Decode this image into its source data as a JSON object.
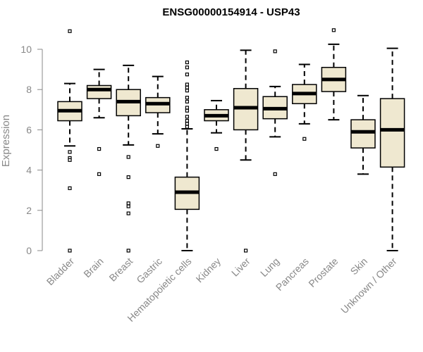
{
  "chart_data": {
    "type": "boxplot",
    "title": "ENSG00000154914 - USP43",
    "xlabel": "",
    "ylabel": "Expression",
    "ylim": [
      0,
      11
    ],
    "yticks": [
      0,
      2,
      4,
      6,
      8,
      10
    ],
    "grid": false,
    "legend": "none",
    "colors": {
      "box_fill": "#efe8d0",
      "box_stroke": "#000000",
      "median": "#000000",
      "axis": "#888888"
    },
    "categories": [
      "Bladder",
      "Brain",
      "Breast",
      "Gastric",
      "Hematopoietic cells",
      "Kidney",
      "Liver",
      "Lung",
      "Pancreas",
      "Prostate",
      "Skin",
      "Unknown / Other"
    ],
    "boxes": [
      {
        "category": "Bladder",
        "min": 5.2,
        "q1": 6.45,
        "median": 6.95,
        "q3": 7.4,
        "max": 8.3,
        "outliers": [
          10.9,
          4.9,
          4.6,
          4.5,
          3.1,
          0.0
        ]
      },
      {
        "category": "Brain",
        "min": 6.6,
        "q1": 7.55,
        "median": 8.0,
        "q3": 8.2,
        "max": 9.0,
        "outliers": [
          5.05,
          3.8
        ]
      },
      {
        "category": "Breast",
        "min": 5.25,
        "q1": 6.7,
        "median": 7.4,
        "q3": 8.0,
        "max": 9.2,
        "outliers": [
          4.65,
          3.65,
          2.35,
          2.2,
          1.85,
          0.0
        ]
      },
      {
        "category": "Gastric",
        "min": 5.8,
        "q1": 6.85,
        "median": 7.3,
        "q3": 7.6,
        "max": 8.65,
        "outliers": [
          5.2
        ]
      },
      {
        "category": "Hematopoietic cells",
        "min": 0.0,
        "q1": 2.05,
        "median": 2.9,
        "q3": 3.65,
        "max": 6.05,
        "outliers": [
          9.35,
          9.1,
          8.75,
          8.25,
          8.1,
          7.95,
          7.6,
          7.4,
          7.1,
          6.95,
          6.65,
          6.45,
          6.3,
          6.15
        ]
      },
      {
        "category": "Kidney",
        "min": 5.85,
        "q1": 6.45,
        "median": 6.7,
        "q3": 7.0,
        "max": 7.45,
        "outliers": [
          5.05
        ]
      },
      {
        "category": "Liver",
        "min": 4.5,
        "q1": 6.0,
        "median": 7.1,
        "q3": 8.05,
        "max": 9.95,
        "outliers": [
          0.0
        ]
      },
      {
        "category": "Lung",
        "min": 5.65,
        "q1": 6.55,
        "median": 7.05,
        "q3": 7.65,
        "max": 8.15,
        "outliers": [
          9.9,
          3.8
        ]
      },
      {
        "category": "Pancreas",
        "min": 6.3,
        "q1": 7.3,
        "median": 7.8,
        "q3": 8.25,
        "max": 9.25,
        "outliers": [
          5.55
        ]
      },
      {
        "category": "Prostate",
        "min": 6.5,
        "q1": 7.9,
        "median": 8.5,
        "q3": 9.1,
        "max": 10.25,
        "outliers": [
          10.95
        ]
      },
      {
        "category": "Skin",
        "min": 3.8,
        "q1": 5.1,
        "median": 5.9,
        "q3": 6.5,
        "max": 7.7,
        "outliers": []
      },
      {
        "category": "Unknown / Other",
        "min": 0.0,
        "q1": 4.15,
        "median": 6.0,
        "q3": 7.55,
        "max": 10.05,
        "outliers": []
      }
    ]
  }
}
